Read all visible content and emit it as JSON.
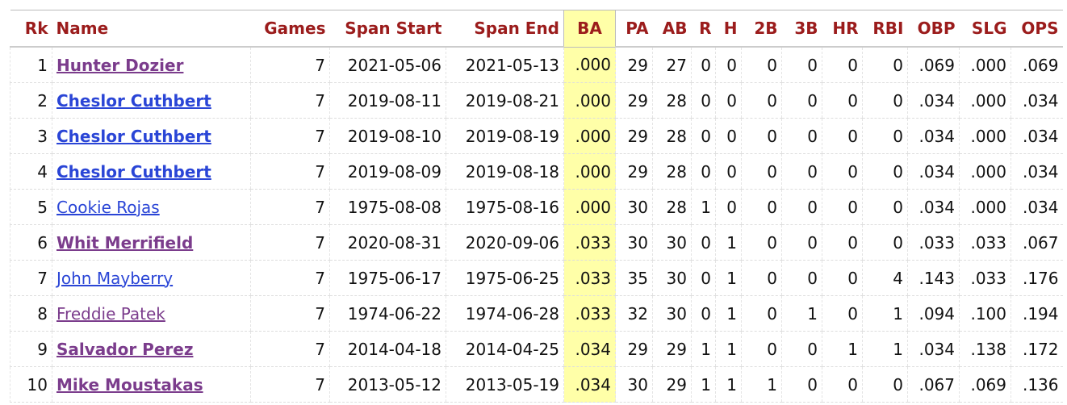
{
  "table": {
    "headers": [
      "Rk",
      "Name",
      "Games",
      "Span Start",
      "Span End",
      "BA",
      "PA",
      "AB",
      "R",
      "H",
      "2B",
      "3B",
      "HR",
      "RBI",
      "OBP",
      "SLG",
      "OPS"
    ],
    "highlight_column": 5,
    "rows": [
      [
        "1",
        "Hunter Dozier",
        "7",
        "2021-05-06",
        "2021-05-13",
        ".000",
        "29",
        "27",
        "0",
        "0",
        "0",
        "0",
        "0",
        "0",
        ".069",
        ".000",
        ".069"
      ],
      [
        "2",
        "Cheslor Cuthbert",
        "7",
        "2019-08-11",
        "2019-08-21",
        ".000",
        "29",
        "28",
        "0",
        "0",
        "0",
        "0",
        "0",
        "0",
        ".034",
        ".000",
        ".034"
      ],
      [
        "3",
        "Cheslor Cuthbert",
        "7",
        "2019-08-10",
        "2019-08-19",
        ".000",
        "29",
        "28",
        "0",
        "0",
        "0",
        "0",
        "0",
        "0",
        ".034",
        ".000",
        ".034"
      ],
      [
        "4",
        "Cheslor Cuthbert",
        "7",
        "2019-08-09",
        "2019-08-18",
        ".000",
        "29",
        "28",
        "0",
        "0",
        "0",
        "0",
        "0",
        "0",
        ".034",
        ".000",
        ".034"
      ],
      [
        "5",
        "Cookie Rojas",
        "7",
        "1975-08-08",
        "1975-08-16",
        ".000",
        "30",
        "28",
        "1",
        "0",
        "0",
        "0",
        "0",
        "0",
        ".034",
        ".000",
        ".034"
      ],
      [
        "6",
        "Whit Merrifield",
        "7",
        "2020-08-31",
        "2020-09-06",
        ".033",
        "30",
        "30",
        "0",
        "1",
        "0",
        "0",
        "0",
        "0",
        ".033",
        ".033",
        ".067"
      ],
      [
        "7",
        "John Mayberry",
        "7",
        "1975-06-17",
        "1975-06-25",
        ".033",
        "35",
        "30",
        "0",
        "1",
        "0",
        "0",
        "0",
        "4",
        ".143",
        ".033",
        ".176"
      ],
      [
        "8",
        "Freddie Patek",
        "7",
        "1974-06-22",
        "1974-06-28",
        ".033",
        "32",
        "30",
        "0",
        "1",
        "0",
        "1",
        "0",
        "1",
        ".094",
        ".100",
        ".194"
      ],
      [
        "9",
        "Salvador Perez",
        "7",
        "2014-04-18",
        "2014-04-25",
        ".034",
        "29",
        "29",
        "1",
        "1",
        "0",
        "0",
        "1",
        "1",
        ".034",
        ".138",
        ".172"
      ],
      [
        "10",
        "Mike Moustakas",
        "7",
        "2013-05-12",
        "2013-05-19",
        ".034",
        "30",
        "29",
        "1",
        "1",
        "1",
        "0",
        "0",
        "0",
        ".067",
        ".069",
        ".136"
      ]
    ],
    "name_links": [
      {
        "color": "#7b3c8c",
        "bold": true
      },
      {
        "color": "#2a45d6",
        "bold": true
      },
      {
        "color": "#2a45d6",
        "bold": true
      },
      {
        "color": "#2a45d6",
        "bold": true
      },
      {
        "color": "#2a45d6",
        "bold": false
      },
      {
        "color": "#7b3c8c",
        "bold": true
      },
      {
        "color": "#2a45d6",
        "bold": false
      },
      {
        "color": "#7b3c8c",
        "bold": false
      },
      {
        "color": "#7b3c8c",
        "bold": true
      },
      {
        "color": "#7b3c8c",
        "bold": true
      }
    ]
  }
}
